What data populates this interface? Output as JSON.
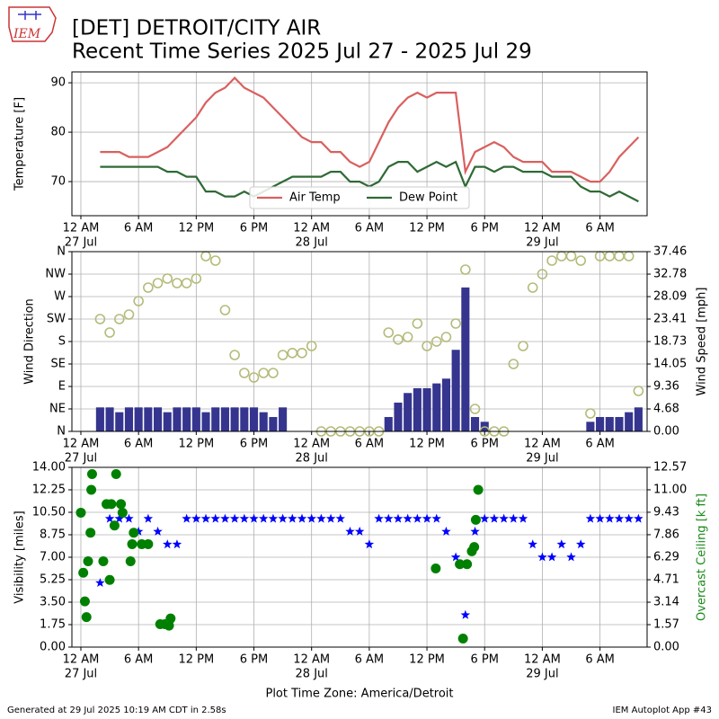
{
  "header": {
    "logo_text": "IEM",
    "title_line1": "[DET] DETROIT/CITY AIR",
    "title_line2": "Recent Time Series 2025 Jul 27 - 2025 Jul 29"
  },
  "footer": {
    "generated": "Generated at 29 Jul 2025 10:19 AM CDT in 2.58s",
    "app": "IEM Autoplot App #43"
  },
  "chart_data": [
    {
      "type": "line",
      "ylabel": "Temperature [F]",
      "grid": true,
      "legend": "lower center",
      "xlim": [
        "2025-07-26 23:04",
        "2025-07-29 10:54"
      ],
      "xticks": [
        {
          "value": "2025-07-27 00:00",
          "label": "12 AM"
        },
        {
          "value": "2025-07-27 06:00",
          "label": "6 AM"
        },
        {
          "value": "2025-07-27 12:00",
          "label": "12 PM"
        },
        {
          "value": "2025-07-27 18:00",
          "label": "6 PM"
        },
        {
          "value": "2025-07-28 00:00",
          "label": "12 AM"
        },
        {
          "value": "2025-07-28 06:00",
          "label": "6 AM"
        },
        {
          "value": "2025-07-28 12:00",
          "label": "12 PM"
        },
        {
          "value": "2025-07-28 18:00",
          "label": "6 PM"
        },
        {
          "value": "2025-07-29 00:00",
          "label": "12 AM"
        },
        {
          "value": "2025-07-29 06:00",
          "label": "6 AM"
        }
      ],
      "xtick_dates": [
        {
          "value": "2025-07-27 00:00",
          "label": "27 Jul"
        },
        {
          "value": "2025-07-28 00:00",
          "label": "28 Jul"
        },
        {
          "value": "2025-07-29 00:00",
          "label": "29 Jul"
        }
      ],
      "ylim": [
        63.1,
        92.2
      ],
      "yticks": [
        70,
        80,
        90
      ],
      "x": [
        "2025-07-27 02:00",
        "2025-07-27 03:00",
        "2025-07-27 04:00",
        "2025-07-27 05:00",
        "2025-07-27 06:00",
        "2025-07-27 07:00",
        "2025-07-27 08:00",
        "2025-07-27 09:00",
        "2025-07-27 10:00",
        "2025-07-27 11:00",
        "2025-07-27 12:00",
        "2025-07-27 13:00",
        "2025-07-27 14:00",
        "2025-07-27 15:00",
        "2025-07-27 16:00",
        "2025-07-27 17:00",
        "2025-07-27 18:00",
        "2025-07-27 19:00",
        "2025-07-27 20:00",
        "2025-07-27 21:00",
        "2025-07-27 22:00",
        "2025-07-27 23:00",
        "2025-07-28 00:00",
        "2025-07-28 01:00",
        "2025-07-28 02:00",
        "2025-07-28 03:00",
        "2025-07-28 04:00",
        "2025-07-28 05:00",
        "2025-07-28 06:00",
        "2025-07-28 07:00",
        "2025-07-28 08:00",
        "2025-07-28 09:00",
        "2025-07-28 10:00",
        "2025-07-28 11:00",
        "2025-07-28 12:00",
        "2025-07-28 13:00",
        "2025-07-28 14:00",
        "2025-07-28 15:00",
        "2025-07-28 16:00",
        "2025-07-28 17:00",
        "2025-07-28 18:00",
        "2025-07-28 19:00",
        "2025-07-28 20:00",
        "2025-07-28 21:00",
        "2025-07-28 22:00",
        "2025-07-28 23:00",
        "2025-07-29 00:00",
        "2025-07-29 01:00",
        "2025-07-29 02:00",
        "2025-07-29 03:00",
        "2025-07-29 04:00",
        "2025-07-29 05:00",
        "2025-07-29 06:00",
        "2025-07-29 07:00",
        "2025-07-29 08:00",
        "2025-07-29 09:00",
        "2025-07-29 10:00"
      ],
      "series": [
        {
          "name": "Air Temp",
          "type": "line",
          "color": "#d9605f",
          "values": [
            76,
            76,
            76,
            75,
            75,
            75,
            76,
            77,
            79,
            81,
            83,
            86,
            88,
            89,
            91,
            89,
            88,
            87,
            85,
            83,
            81,
            79,
            78,
            78,
            76,
            76,
            74,
            73,
            74,
            78,
            82,
            85,
            87,
            88,
            87,
            88,
            88,
            88,
            72,
            76,
            77,
            78,
            77,
            75,
            74,
            74,
            74,
            72,
            72,
            72,
            71,
            70,
            70,
            72,
            75,
            77,
            79
          ]
        },
        {
          "name": "Dew Point",
          "type": "line",
          "color": "#2f6a35",
          "values": [
            73,
            73,
            73,
            73,
            73,
            73,
            73,
            72,
            72,
            71,
            71,
            68,
            68,
            67,
            67,
            68,
            67,
            68,
            69,
            70,
            71,
            71,
            71,
            71,
            72,
            72,
            70,
            70,
            69,
            70,
            73,
            74,
            74,
            72,
            73,
            74,
            73,
            74,
            69,
            73,
            73,
            72,
            73,
            73,
            72,
            72,
            72,
            71,
            71,
            71,
            69,
            68,
            68,
            67,
            68,
            67,
            66
          ]
        }
      ]
    },
    {
      "type": "combo",
      "ylabel": "Wind Direction",
      "y2label": "Wind Speed [mph]",
      "grid": true,
      "xlim": [
        "2025-07-26 23:04",
        "2025-07-29 10:54"
      ],
      "xticks": [
        {
          "value": "2025-07-27 00:00",
          "label": "12 AM"
        },
        {
          "value": "2025-07-27 06:00",
          "label": "6 AM"
        },
        {
          "value": "2025-07-27 12:00",
          "label": "12 PM"
        },
        {
          "value": "2025-07-27 18:00",
          "label": "6 PM"
        },
        {
          "value": "2025-07-28 00:00",
          "label": "12 AM"
        },
        {
          "value": "2025-07-28 06:00",
          "label": "6 AM"
        },
        {
          "value": "2025-07-28 12:00",
          "label": "12 PM"
        },
        {
          "value": "2025-07-28 18:00",
          "label": "6 PM"
        },
        {
          "value": "2025-07-29 00:00",
          "label": "12 AM"
        },
        {
          "value": "2025-07-29 06:00",
          "label": "6 AM"
        }
      ],
      "xtick_dates": [
        {
          "value": "2025-07-27 00:00",
          "label": "27 Jul"
        },
        {
          "value": "2025-07-28 00:00",
          "label": "28 Jul"
        },
        {
          "value": "2025-07-29 00:00",
          "label": "29 Jul"
        }
      ],
      "ylim": [
        0,
        360
      ],
      "yticks": [
        {
          "value": 0,
          "label": "N"
        },
        {
          "value": 45,
          "label": "NE"
        },
        {
          "value": 90,
          "label": "E"
        },
        {
          "value": 135,
          "label": "SE"
        },
        {
          "value": 180,
          "label": "S"
        },
        {
          "value": 225,
          "label": "SW"
        },
        {
          "value": 270,
          "label": "W"
        },
        {
          "value": 315,
          "label": "NW"
        },
        {
          "value": 360,
          "label": "N"
        }
      ],
      "y2lim": [
        0,
        37.46
      ],
      "y2ticks": [
        {
          "value": 0,
          "label": "0.00"
        },
        4.68,
        9.36,
        14.05,
        18.73,
        23.41,
        28.09,
        32.78,
        37.46
      ],
      "x": [
        "2025-07-27 02:00",
        "2025-07-27 03:00",
        "2025-07-27 04:00",
        "2025-07-27 05:00",
        "2025-07-27 06:00",
        "2025-07-27 07:00",
        "2025-07-27 08:00",
        "2025-07-27 09:00",
        "2025-07-27 10:00",
        "2025-07-27 11:00",
        "2025-07-27 12:00",
        "2025-07-27 13:00",
        "2025-07-27 14:00",
        "2025-07-27 15:00",
        "2025-07-27 16:00",
        "2025-07-27 17:00",
        "2025-07-27 18:00",
        "2025-07-27 19:00",
        "2025-07-27 20:00",
        "2025-07-27 21:00",
        "2025-07-27 22:00",
        "2025-07-27 23:00",
        "2025-07-28 00:00",
        "2025-07-28 01:00",
        "2025-07-28 02:00",
        "2025-07-28 03:00",
        "2025-07-28 04:00",
        "2025-07-28 05:00",
        "2025-07-28 06:00",
        "2025-07-28 07:00",
        "2025-07-28 08:00",
        "2025-07-28 09:00",
        "2025-07-28 10:00",
        "2025-07-28 11:00",
        "2025-07-28 12:00",
        "2025-07-28 13:00",
        "2025-07-28 14:00",
        "2025-07-28 15:00",
        "2025-07-28 16:00",
        "2025-07-28 17:00",
        "2025-07-28 18:00",
        "2025-07-28 19:00",
        "2025-07-28 20:00",
        "2025-07-28 21:00",
        "2025-07-28 22:00",
        "2025-07-28 23:00",
        "2025-07-29 00:00",
        "2025-07-29 01:00",
        "2025-07-29 02:00",
        "2025-07-29 03:00",
        "2025-07-29 04:00",
        "2025-07-29 05:00",
        "2025-07-29 06:00",
        "2025-07-29 07:00",
        "2025-07-29 08:00",
        "2025-07-29 09:00",
        "2025-07-29 10:00"
      ],
      "series": [
        {
          "type": "bar",
          "axis": "y2",
          "color": "#35358f",
          "values": [
            5,
            5,
            4,
            5,
            5,
            5,
            5,
            4,
            5,
            5,
            5,
            4,
            5,
            5,
            5,
            5,
            5,
            4,
            3,
            5,
            0,
            0,
            0,
            0,
            0,
            0,
            0,
            0,
            0,
            0,
            3,
            6,
            8,
            9,
            9,
            10,
            11,
            17,
            30,
            3,
            2,
            0,
            0,
            0,
            0,
            0,
            0,
            0,
            0,
            0,
            0,
            2,
            3,
            3,
            3,
            4,
            5
          ]
        },
        {
          "type": "scatter",
          "marker": "circle",
          "color": "#b5bb7a",
          "values": [
            225,
            198,
            225,
            234,
            261,
            288,
            297,
            306,
            297,
            297,
            306,
            351,
            342,
            243,
            153,
            117,
            108,
            117,
            117,
            153,
            157,
            157,
            171,
            0,
            0,
            0,
            0,
            0,
            0,
            0,
            198,
            184,
            189,
            216,
            171,
            180,
            189,
            216,
            324,
            45,
            0,
            0,
            0,
            135,
            171,
            288,
            315,
            342,
            351,
            351,
            342,
            36,
            351,
            351,
            351,
            351,
            81
          ]
        }
      ]
    },
    {
      "type": "combo",
      "ylabel": "Visibility [miles]",
      "y2label": "Overcast Ceiling [k ft]",
      "y2color": "#1a8a1a",
      "xlabel": "Plot Time Zone: America/Detroit",
      "grid": true,
      "xlim": [
        "2025-07-26 23:04",
        "2025-07-29 10:54"
      ],
      "xticks": [
        {
          "value": "2025-07-27 00:00",
          "label": "12 AM"
        },
        {
          "value": "2025-07-27 06:00",
          "label": "6 AM"
        },
        {
          "value": "2025-07-27 12:00",
          "label": "12 PM"
        },
        {
          "value": "2025-07-27 18:00",
          "label": "6 PM"
        },
        {
          "value": "2025-07-28 00:00",
          "label": "12 AM"
        },
        {
          "value": "2025-07-28 06:00",
          "label": "6 AM"
        },
        {
          "value": "2025-07-28 12:00",
          "label": "12 PM"
        },
        {
          "value": "2025-07-28 18:00",
          "label": "6 PM"
        },
        {
          "value": "2025-07-29 00:00",
          "label": "12 AM"
        },
        {
          "value": "2025-07-29 06:00",
          "label": "6 AM"
        }
      ],
      "xtick_dates": [
        {
          "value": "2025-07-27 00:00",
          "label": "27 Jul"
        },
        {
          "value": "2025-07-28 00:00",
          "label": "28 Jul"
        },
        {
          "value": "2025-07-29 00:00",
          "label": "29 Jul"
        }
      ],
      "ylim": [
        0,
        14
      ],
      "yticks": [
        {
          "value": 0,
          "label": "0.00"
        },
        1.75,
        {
          "value": 3.5,
          "label": "3.50"
        },
        5.25,
        {
          "value": 7,
          "label": "7.00"
        },
        8.75,
        {
          "value": 10.5,
          "label": "10.50"
        },
        12.25,
        {
          "value": 14,
          "label": "14.00"
        }
      ],
      "y2lim": [
        0,
        12.57
      ],
      "y2ticks": [
        {
          "value": 0,
          "label": "0.00"
        },
        1.57,
        3.14,
        4.71,
        6.29,
        7.86,
        9.43,
        {
          "value": 11,
          "label": "11.00"
        },
        12.57
      ],
      "x": [
        "2025-07-27 02:00",
        "2025-07-27 03:00",
        "2025-07-27 04:00",
        "2025-07-27 05:00",
        "2025-07-27 06:00",
        "2025-07-27 07:00",
        "2025-07-27 08:00",
        "2025-07-27 09:00",
        "2025-07-27 10:00",
        "2025-07-27 11:00",
        "2025-07-27 12:00",
        "2025-07-27 13:00",
        "2025-07-27 14:00",
        "2025-07-27 15:00",
        "2025-07-27 16:00",
        "2025-07-27 17:00",
        "2025-07-27 18:00",
        "2025-07-27 19:00",
        "2025-07-27 20:00",
        "2025-07-27 21:00",
        "2025-07-27 22:00",
        "2025-07-27 23:00",
        "2025-07-28 00:00",
        "2025-07-28 01:00",
        "2025-07-28 02:00",
        "2025-07-28 03:00",
        "2025-07-28 04:00",
        "2025-07-28 05:00",
        "2025-07-28 06:00",
        "2025-07-28 07:00",
        "2025-07-28 08:00",
        "2025-07-28 09:00",
        "2025-07-28 10:00",
        "2025-07-28 11:00",
        "2025-07-28 12:00",
        "2025-07-28 13:00",
        "2025-07-28 14:00",
        "2025-07-28 15:00",
        "2025-07-28 16:00",
        "2025-07-28 17:00",
        "2025-07-28 18:00",
        "2025-07-28 19:00",
        "2025-07-28 20:00",
        "2025-07-28 21:00",
        "2025-07-28 22:00",
        "2025-07-28 23:00",
        "2025-07-29 00:00",
        "2025-07-29 01:00",
        "2025-07-29 02:00",
        "2025-07-29 03:00",
        "2025-07-29 04:00",
        "2025-07-29 05:00",
        "2025-07-29 06:00",
        "2025-07-29 07:00",
        "2025-07-29 08:00",
        "2025-07-29 09:00",
        "2025-07-29 10:00"
      ],
      "series": [
        {
          "type": "scatter",
          "marker": "star",
          "color": "#0000ff",
          "values": [
            5,
            10,
            10,
            10,
            9,
            10,
            9,
            8,
            8,
            10,
            10,
            10,
            10,
            10,
            10,
            10,
            10,
            10,
            10,
            10,
            10,
            10,
            10,
            10,
            10,
            10,
            9,
            9,
            8,
            10,
            10,
            10,
            10,
            10,
            10,
            10,
            9,
            7,
            2.5,
            9,
            10,
            10,
            10,
            10,
            10,
            8,
            7,
            7,
            8,
            7,
            8,
            10,
            10,
            10,
            10,
            10,
            10
          ]
        },
        {
          "type": "scatter",
          "marker": "dot",
          "axis": "y2",
          "color": "#008000",
          "x": [
            "2025-07-27 00:00",
            "2025-07-27 00:15",
            "2025-07-27 00:25",
            "2025-07-27 00:35",
            "2025-07-27 00:45",
            "2025-07-27 01:00",
            "2025-07-27 01:05",
            "2025-07-27 01:10",
            "2025-07-27 02:20",
            "2025-07-27 02:40",
            "2025-07-27 03:00",
            "2025-07-27 03:10",
            "2025-07-27 03:30",
            "2025-07-27 03:40",
            "2025-07-27 04:10",
            "2025-07-27 04:20",
            "2025-07-27 05:10",
            "2025-07-27 05:20",
            "2025-07-27 05:30",
            "2025-07-27 06:20",
            "2025-07-27 07:00",
            "2025-07-27 08:15",
            "2025-07-27 08:45",
            "2025-07-27 09:10",
            "2025-07-27 09:20",
            "2025-07-28 12:55",
            "2025-07-28 15:25",
            "2025-07-28 15:45",
            "2025-07-28 16:10",
            "2025-07-28 16:40",
            "2025-07-28 16:55",
            "2025-07-28 17:05",
            "2025-07-28 17:20"
          ],
          "values": [
            9.4,
            5.2,
            3.2,
            2.1,
            6.0,
            8.0,
            11.0,
            12.1,
            6.0,
            10.0,
            4.7,
            10.0,
            8.5,
            12.1,
            10.0,
            9.4,
            6.0,
            7.2,
            8.0,
            7.2,
            7.2,
            1.6,
            1.6,
            1.5,
            2.0,
            5.5,
            5.8,
            0.6,
            5.8,
            6.7,
            7.0,
            8.9,
            11.0
          ]
        }
      ]
    }
  ]
}
